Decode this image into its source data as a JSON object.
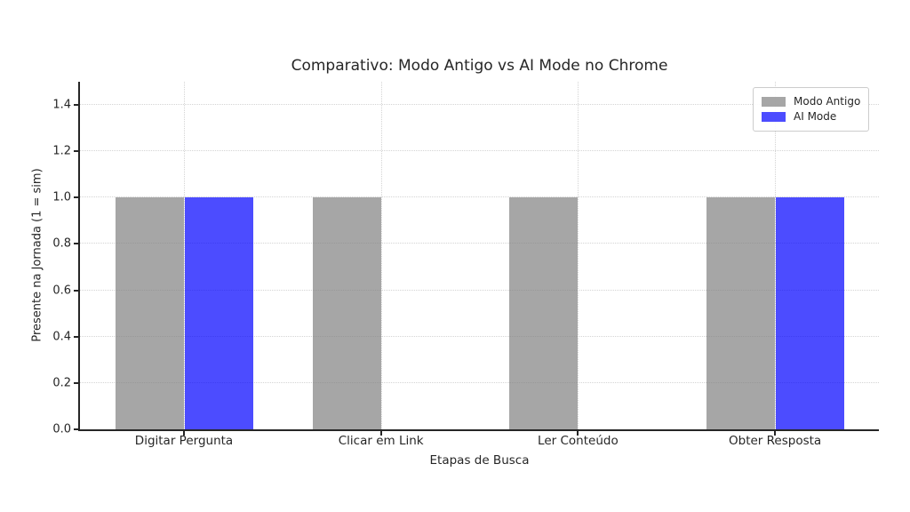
{
  "chart_data": {
    "type": "bar",
    "title": "Comparativo: Modo Antigo vs AI Mode no Chrome",
    "xlabel": "Etapas de Busca",
    "ylabel": "Presente na Jornada (1 = sim)",
    "categories": [
      "Digitar Pergunta",
      "Clicar em Link",
      "Ler Conteúdo",
      "Obter Resposta"
    ],
    "series": [
      {
        "name": "Modo Antigo",
        "color": "#808080",
        "alpha": 0.7,
        "values": [
          1,
          1,
          1,
          1
        ]
      },
      {
        "name": "AI Mode",
        "color": "#0000ff",
        "alpha": 0.7,
        "values": [
          1,
          0,
          0,
          1
        ]
      }
    ],
    "ylim": [
      0,
      1.5
    ],
    "yticks": [
      0.0,
      0.2,
      0.4,
      0.6,
      0.8,
      1.0,
      1.2,
      1.4
    ],
    "grid": true,
    "grid_style": "dotted",
    "legend_position": "upper right",
    "background_color": "#ffffff",
    "spine_color": "#262626"
  }
}
